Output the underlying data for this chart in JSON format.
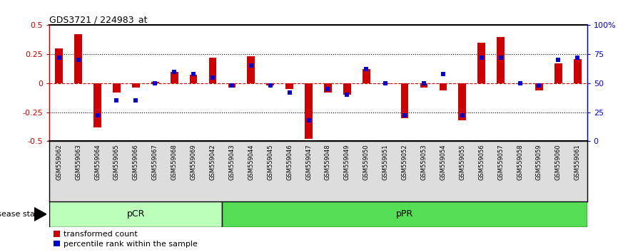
{
  "title": "GDS3721 / 224983_at",
  "samples": [
    "GSM559062",
    "GSM559063",
    "GSM559064",
    "GSM559065",
    "GSM559066",
    "GSM559067",
    "GSM559068",
    "GSM559069",
    "GSM559042",
    "GSM559043",
    "GSM559044",
    "GSM559045",
    "GSM559046",
    "GSM559047",
    "GSM559048",
    "GSM559049",
    "GSM559050",
    "GSM559051",
    "GSM559052",
    "GSM559053",
    "GSM559054",
    "GSM559055",
    "GSM559056",
    "GSM559057",
    "GSM559058",
    "GSM559059",
    "GSM559060",
    "GSM559061"
  ],
  "red_values": [
    0.3,
    0.42,
    -0.38,
    -0.08,
    -0.04,
    0.01,
    0.1,
    0.07,
    0.22,
    -0.04,
    0.23,
    -0.02,
    -0.05,
    -0.48,
    -0.08,
    -0.1,
    0.12,
    -0.01,
    -0.3,
    -0.04,
    -0.06,
    -0.32,
    0.35,
    0.4,
    -0.01,
    -0.06,
    0.17,
    0.21
  ],
  "blue_values": [
    72,
    70,
    22,
    35,
    35,
    50,
    60,
    58,
    55,
    48,
    65,
    48,
    42,
    18,
    45,
    40,
    62,
    50,
    22,
    50,
    58,
    22,
    72,
    72,
    50,
    48,
    70,
    72
  ],
  "pCR_count": 9,
  "pCR_label": "pCR",
  "pPR_label": "pPR",
  "bar_color": "#cc0000",
  "blue_color": "#0000cc",
  "ylim": [
    -0.5,
    0.5
  ],
  "yticks_left": [
    -0.5,
    -0.25,
    0.0,
    0.25,
    0.5
  ],
  "yticks_left_labels": [
    "-0.5",
    "-0.25",
    "0",
    "0.25",
    "0.5"
  ],
  "yticks_right_vals": [
    -0.5,
    -0.25,
    0.0,
    0.25,
    0.5
  ],
  "yticks_right_labels": [
    "0",
    "25",
    "50",
    "75",
    "100%"
  ],
  "grid_lines": [
    -0.25,
    0.25
  ],
  "legend_red": "transformed count",
  "legend_blue": "percentile rank within the sample",
  "pCR_color": "#bbffbb",
  "pPR_color": "#55dd55",
  "disease_state_label": "disease state",
  "bar_width": 0.4,
  "blue_marker_size": 5
}
